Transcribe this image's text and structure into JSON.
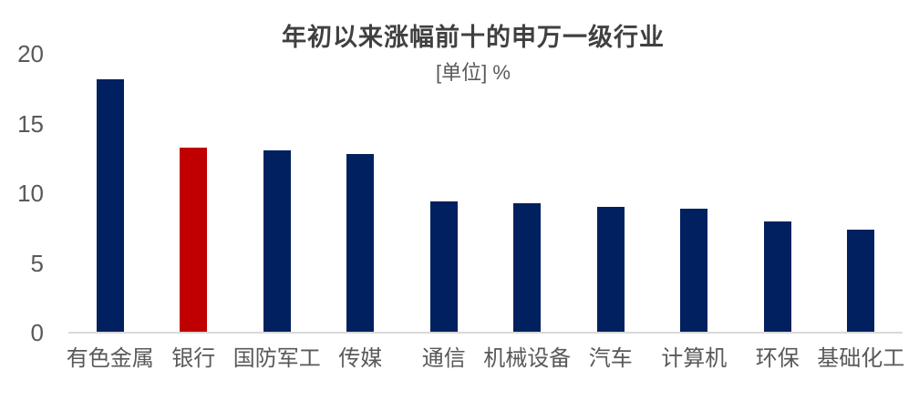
{
  "chart": {
    "title": "年初以来涨幅前十的申万一级行业",
    "subtitle": "[单位] %"
  },
  "chart_data": {
    "type": "bar",
    "title": "年初以来涨幅前十的申万一级行业",
    "subtitle": "[单位] %",
    "unit": "%",
    "categories": [
      "有色金属",
      "银行",
      "国防军工",
      "传媒",
      "通信",
      "机械设备",
      "汽车",
      "计算机",
      "环保",
      "基础化工"
    ],
    "values": [
      18.2,
      13.3,
      13.1,
      12.8,
      9.4,
      9.3,
      9.0,
      8.9,
      8.0,
      7.4
    ],
    "highlight_index": 1,
    "xlabel": "",
    "ylabel": "",
    "ylim": [
      0,
      20
    ],
    "yticks": [
      0,
      5,
      10,
      15,
      20
    ],
    "grid": false,
    "legend": null,
    "colors": {
      "bar_default": "#002060",
      "bar_highlight": "#C00000",
      "axis_line": "#D9D9D9",
      "title_text": "#404040",
      "label_text": "#595959"
    }
  }
}
